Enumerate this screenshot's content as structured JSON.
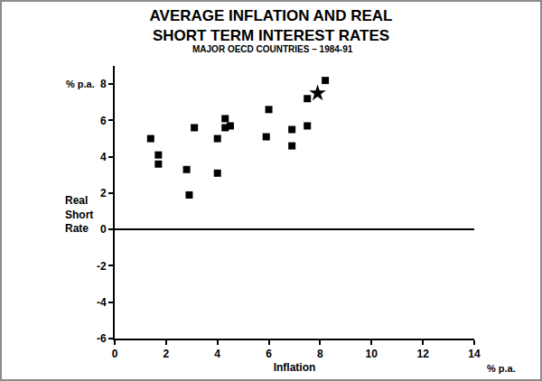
{
  "chart_data": {
    "type": "scatter",
    "title": "AVERAGE INFLATION AND REAL\nSHORT TERM INTEREST RATES",
    "subtitle": "MAJOR OECD COUNTRIES – 1984-91",
    "x_label": "Inflation",
    "y_label": "Real Short Rate",
    "x_unit": "% p.a.",
    "y_unit": "% p.a.",
    "xlim": [
      0,
      14
    ],
    "xticks": [
      0,
      2,
      4,
      6,
      8,
      10,
      12,
      14
    ],
    "ylim": [
      -6,
      9
    ],
    "yticks": [
      -6,
      -4,
      -2,
      0,
      2,
      4,
      6,
      8
    ],
    "grid": false,
    "series": [
      {
        "marker": "square",
        "color": "#000000",
        "x": [
          1.4,
          1.7,
          1.7,
          2.8,
          2.9,
          3.1,
          4.0,
          4.0,
          4.3,
          4.3,
          4.5,
          6.0,
          5.9,
          6.9,
          6.9,
          7.5,
          7.5,
          8.2
        ],
        "values": [
          5.0,
          4.1,
          3.6,
          3.3,
          1.9,
          5.6,
          5.0,
          3.1,
          6.1,
          5.6,
          5.7,
          6.6,
          5.1,
          5.5,
          4.6,
          7.2,
          5.7,
          8.2
        ]
      },
      {
        "marker": "star",
        "color": "#000000",
        "x": [
          7.9
        ],
        "values": [
          7.5
        ]
      }
    ]
  }
}
